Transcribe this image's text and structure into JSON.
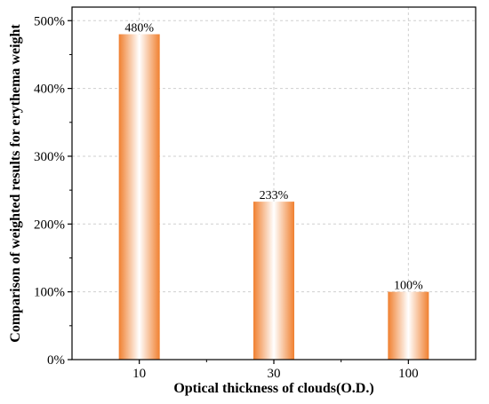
{
  "chart_data": {
    "type": "bar",
    "title": "",
    "xlabel": "Optical thickness of clouds(O.D.)",
    "ylabel": "Comparison of weighted results for erythema weight",
    "categories": [
      "10",
      "30",
      "100"
    ],
    "values": [
      480,
      233,
      100
    ],
    "value_labels": [
      "480%",
      "233%",
      "100%"
    ],
    "y_ticks": [
      0,
      100,
      200,
      300,
      400,
      500
    ],
    "y_tick_labels": [
      "0%",
      "100%",
      "200%",
      "300%",
      "400%",
      "500%"
    ],
    "ylim": [
      0,
      520
    ],
    "grid": true,
    "legend": "none",
    "bar_color": "#f08030",
    "bar_highlight_color": "#ffffff"
  }
}
